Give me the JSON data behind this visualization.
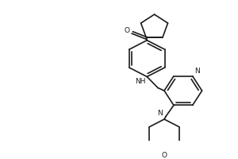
{
  "bg_color": "#ffffff",
  "line_color": "#1a1a1a",
  "line_width": 1.2,
  "font_size": 6.5,
  "figsize": [
    3.0,
    2.0
  ],
  "dpi": 100,
  "xlim": [
    0,
    300
  ],
  "ylim": [
    0,
    200
  ]
}
